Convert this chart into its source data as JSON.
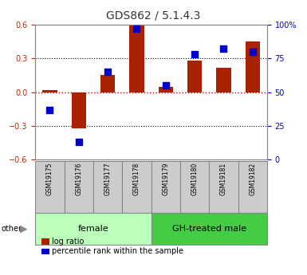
{
  "title": "GDS862 / 5.1.4.3",
  "samples": [
    "GSM19175",
    "GSM19176",
    "GSM19177",
    "GSM19178",
    "GSM19179",
    "GSM19180",
    "GSM19181",
    "GSM19182"
  ],
  "log_ratio": [
    0.02,
    -0.32,
    0.15,
    0.6,
    0.05,
    0.28,
    0.22,
    0.45
  ],
  "percentile_rank": [
    37,
    13,
    65,
    97,
    55,
    78,
    82,
    80
  ],
  "groups": [
    {
      "label": "female",
      "start": 0,
      "end": 4,
      "color": "#bbffbb"
    },
    {
      "label": "GH-treated male",
      "start": 4,
      "end": 8,
      "color": "#44cc44"
    }
  ],
  "ylim_left": [
    -0.6,
    0.6
  ],
  "ylim_right": [
    0,
    100
  ],
  "yticks_left": [
    -0.6,
    -0.3,
    0.0,
    0.3,
    0.6
  ],
  "yticks_right": [
    0,
    25,
    50,
    75,
    100
  ],
  "ytick_labels_right": [
    "0",
    "25",
    "50",
    "75",
    "100%"
  ],
  "bar_color": "#aa2200",
  "dot_color": "#0000cc",
  "hline_color": "#cc0000",
  "grid_color": "#000000",
  "plot_bg": "#ffffff",
  "other_label": "other",
  "legend_bar": "log ratio",
  "legend_dot": "percentile rank within the sample",
  "sample_box_color": "#cccccc",
  "group_box_border": "#888888",
  "title_fontsize": 10,
  "tick_fontsize": 7,
  "sample_fontsize": 5.5,
  "group_fontsize": 8,
  "legend_fontsize": 7
}
